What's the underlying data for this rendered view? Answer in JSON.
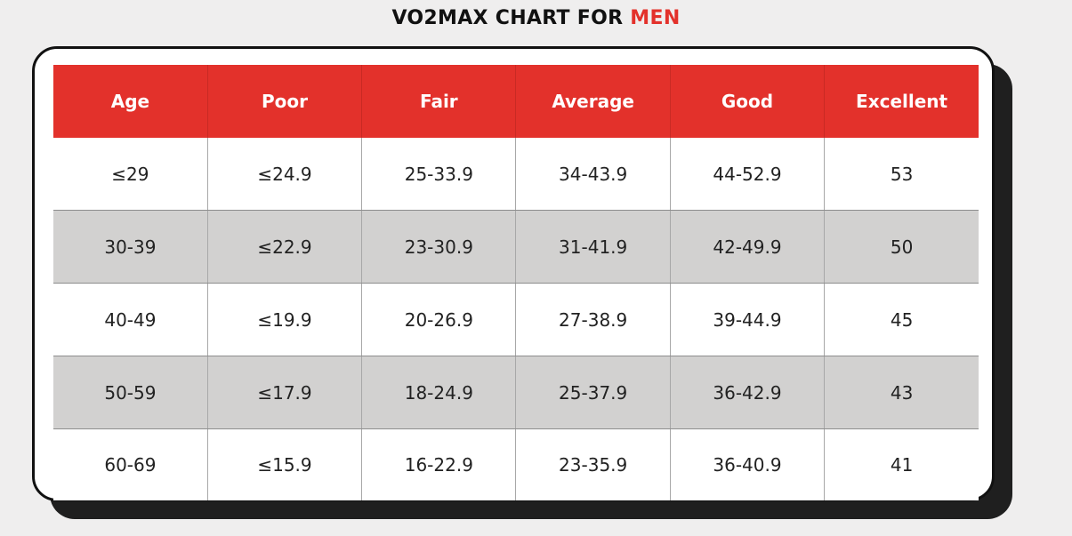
{
  "title": {
    "prefix": "VO2MAX CHART FOR ",
    "highlight": "MEN"
  },
  "colors": {
    "accent": "#e3312b",
    "shaded_row": "#d2d1d0",
    "background": "#efeeee"
  },
  "chart_data": {
    "type": "table",
    "title": "VO2MAX CHART FOR MEN",
    "columns": [
      "Age",
      "Poor",
      "Fair",
      "Average",
      "Good",
      "Excellent"
    ],
    "rows": [
      [
        "≤29",
        "≤24.9",
        "25-33.9",
        "34-43.9",
        "44-52.9",
        "53"
      ],
      [
        "30-39",
        "≤22.9",
        "23-30.9",
        "31-41.9",
        "42-49.9",
        "50"
      ],
      [
        "40-49",
        "≤19.9",
        "20-26.9",
        "27-38.9",
        "39-44.9",
        "45"
      ],
      [
        "50-59",
        "≤17.9",
        "18-24.9",
        "25-37.9",
        "36-42.9",
        "43"
      ],
      [
        "60-69",
        "≤15.9",
        "16-22.9",
        "23-35.9",
        "36-40.9",
        "41"
      ]
    ]
  }
}
